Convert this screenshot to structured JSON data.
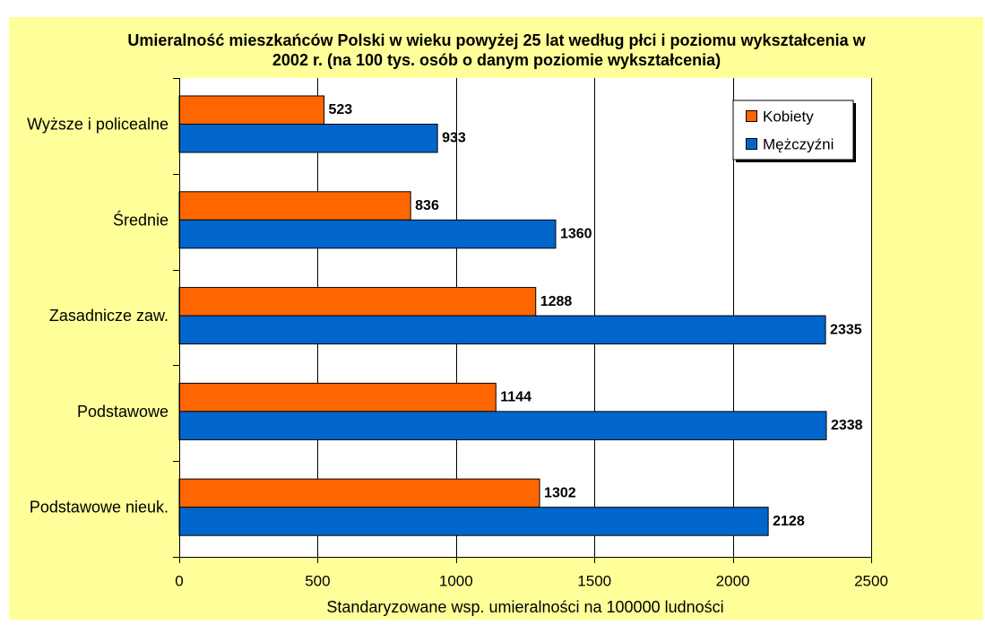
{
  "chart_data": {
    "type": "bar",
    "orientation": "horizontal",
    "title_lines": [
      "Umieralność mieszkańców Polski w wieku powyżej 25 lat według płci i poziomu wykształcenia w",
      "2002 r. (na 100 tys. osób o danym poziomie wykształcenia)"
    ],
    "categories": [
      "Wyższe i policealne",
      "Średnie",
      "Zasadnicze zaw.",
      "Podstawowe",
      "Podstawowe nieuk."
    ],
    "series": [
      {
        "name": "Kobiety",
        "color": "#FF6600",
        "values": [
          523,
          836,
          1288,
          1144,
          1302
        ]
      },
      {
        "name": "Mężczyźni",
        "color": "#0066CC",
        "values": [
          933,
          1360,
          2335,
          2338,
          2128
        ]
      }
    ],
    "xlabel": "Standaryzowane wsp. umieralności na 100000 ludności",
    "xlim": [
      0,
      2500
    ],
    "xticks": [
      0,
      500,
      1000,
      1500,
      2000,
      2500
    ],
    "grid": {
      "vertical": true,
      "horizontal": false
    },
    "legend": {
      "position": "top-right"
    },
    "data_labels": true,
    "colors": {
      "chart_background": "#FFFF99",
      "plot_background": "#FFFFFF",
      "axis": "#000000",
      "grid": "#000000",
      "bar_outline": "#000000"
    }
  }
}
